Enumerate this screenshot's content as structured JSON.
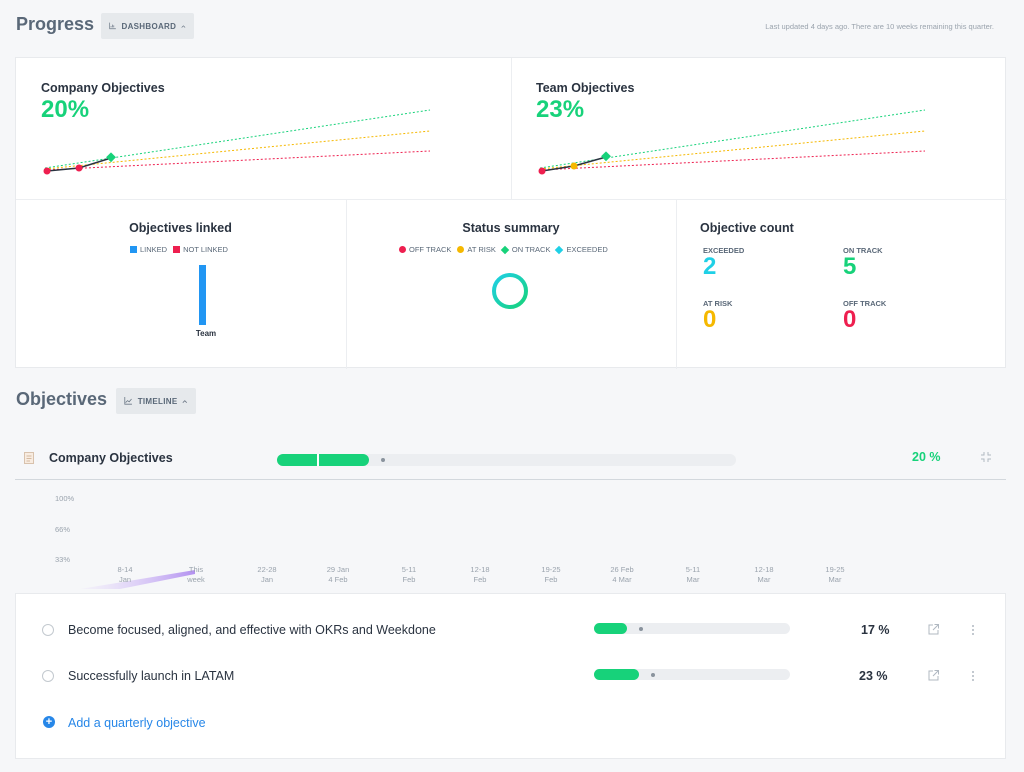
{
  "progress": {
    "title": "Progress",
    "view_chip": "DASHBOARD",
    "last_updated": "Last updated 4 days ago. There are 10 weeks remaining this quarter."
  },
  "company_objectives": {
    "title": "Company Objectives",
    "percent": "20%"
  },
  "team_objectives": {
    "title": "Team Objectives",
    "percent": "23%"
  },
  "objectives_linked": {
    "title": "Objectives linked",
    "legend": [
      "LINKED",
      "NOT LINKED"
    ],
    "bar_label": "Team",
    "linked_fraction": 1.0
  },
  "status_summary": {
    "title": "Status summary",
    "legend": [
      "OFF TRACK",
      "AT RISK",
      "ON TRACK",
      "EXCEEDED"
    ]
  },
  "objective_count": {
    "title": "Objective count",
    "exceeded_label": "EXCEEDED",
    "exceeded_value": "2",
    "on_track_label": "ON TRACK",
    "on_track_value": "5",
    "at_risk_label": "AT RISK",
    "at_risk_value": "0",
    "off_track_label": "OFF TRACK",
    "off_track_value": "0"
  },
  "objectives": {
    "title": "Objectives",
    "view_chip": "TIMELINE",
    "company_row": {
      "title": "Company Objectives",
      "percent": "20 %",
      "progress": 0.2
    },
    "timeline": {
      "y_labels": [
        "100%",
        "66%",
        "33%"
      ],
      "ticks": [
        {
          "top": "8-14",
          "bottom": "Jan"
        },
        {
          "top": "This",
          "bottom": "week"
        },
        {
          "top": "22-28",
          "bottom": "Jan"
        },
        {
          "top": "29 Jan",
          "bottom": "4 Feb"
        },
        {
          "top": "5-11",
          "bottom": "Feb"
        },
        {
          "top": "12-18",
          "bottom": "Feb"
        },
        {
          "top": "19-25",
          "bottom": "Feb"
        },
        {
          "top": "26 Feb",
          "bottom": "4 Mar"
        },
        {
          "top": "5-11",
          "bottom": "Mar"
        },
        {
          "top": "12-18",
          "bottom": "Mar"
        },
        {
          "top": "19-25",
          "bottom": "Mar"
        }
      ]
    },
    "items": [
      {
        "title": "Become focused, aligned, and effective with OKRs and Weekdone",
        "percent": "17 %",
        "progress": 0.17
      },
      {
        "title": "Successfully launch in LATAM",
        "percent": "23 %",
        "progress": 0.23
      }
    ],
    "add_label": "Add a quarterly objective"
  },
  "colors": {
    "on_track": "#17d27a",
    "at_risk": "#f5b800",
    "off_track": "#ee1f4f",
    "exceeded": "#1fd0e6",
    "linked": "#2196f3",
    "link": "#2787e8"
  }
}
